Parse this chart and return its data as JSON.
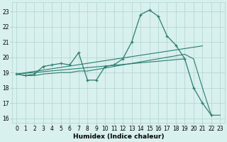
{
  "xlabel": "Humidex (Indice chaleur)",
  "background_color": "#d8f0ee",
  "grid_color": "#b0d4d0",
  "line_color": "#2a7d6e",
  "xlim": [
    -0.5,
    23.5
  ],
  "ylim": [
    15.7,
    23.6
  ],
  "xticks": [
    0,
    1,
    2,
    3,
    4,
    5,
    6,
    7,
    8,
    9,
    10,
    11,
    12,
    13,
    14,
    15,
    16,
    17,
    18,
    19,
    20,
    21,
    22,
    23
  ],
  "yticks": [
    16,
    17,
    18,
    19,
    20,
    21,
    22,
    23
  ],
  "series1_x": [
    0,
    1,
    2,
    3,
    4,
    5,
    6,
    7,
    8,
    9,
    10,
    11,
    12,
    13,
    14,
    15,
    16,
    17,
    18,
    19,
    20,
    21,
    22
  ],
  "series1_y": [
    18.9,
    18.8,
    18.9,
    19.4,
    19.5,
    19.6,
    19.5,
    20.3,
    18.5,
    18.5,
    19.4,
    19.5,
    19.9,
    21.0,
    22.8,
    23.1,
    22.7,
    21.4,
    20.8,
    19.9,
    18.0,
    17.0,
    16.2
  ],
  "series2_x": [
    0,
    21
  ],
  "series2_y": [
    18.9,
    20.75
  ],
  "series3_x": [
    0,
    19
  ],
  "series3_y": [
    18.9,
    19.9
  ],
  "series4_x": [
    0,
    1,
    2,
    3,
    4,
    5,
    6,
    7,
    8,
    9,
    10,
    11,
    12,
    13,
    14,
    15,
    16,
    17,
    18,
    19,
    20,
    21,
    22,
    23
  ],
  "series4_y": [
    18.9,
    18.8,
    18.8,
    18.9,
    18.95,
    19.0,
    19.0,
    19.1,
    19.1,
    19.2,
    19.3,
    19.4,
    19.5,
    19.6,
    19.7,
    19.8,
    19.9,
    20.0,
    20.1,
    20.2,
    19.9,
    18.0,
    16.2,
    16.2
  ]
}
